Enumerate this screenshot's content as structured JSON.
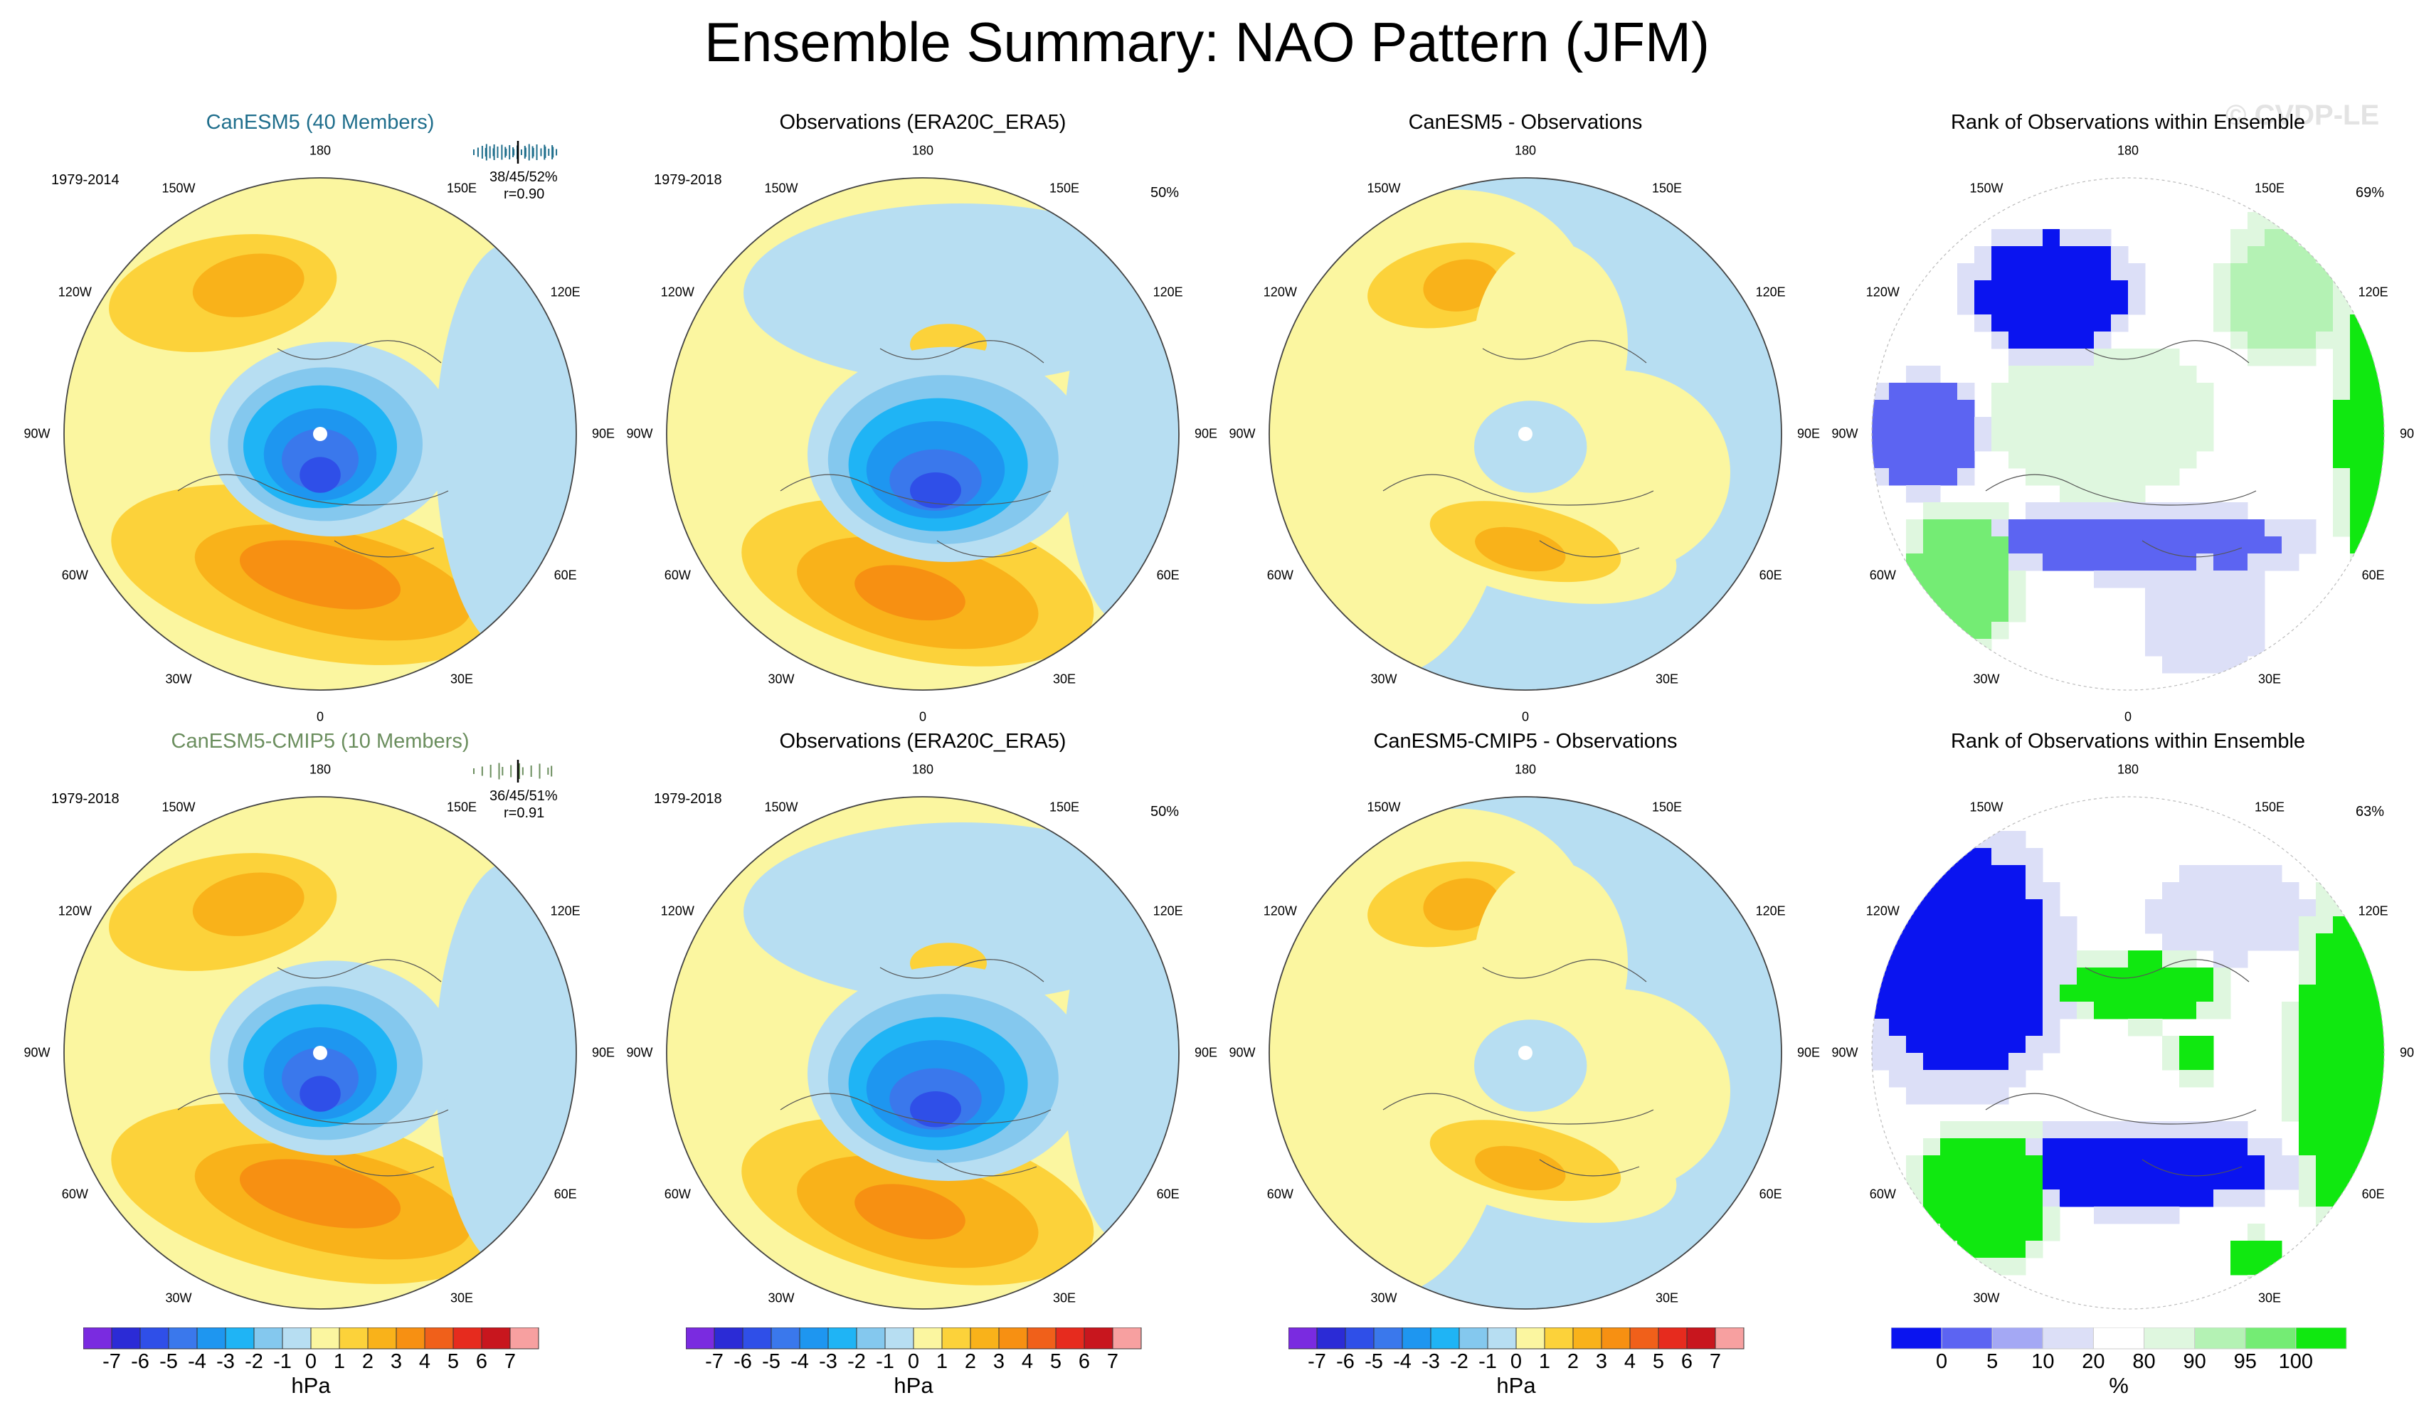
{
  "title": "Ensemble Summary: NAO Pattern (JFM)",
  "watermark": "© CVDP-LE",
  "longitude_labels": [
    "180",
    "150E",
    "120E",
    "90E",
    "60E",
    "30E",
    "0",
    "30W",
    "60W",
    "90W",
    "120W",
    "150W"
  ],
  "rows": [
    {
      "panels": [
        {
          "title": "CanESM5 (40 Members)",
          "title_color": "#1f6e8c",
          "period": "1979-2014",
          "stats": "38/45/52%",
          "corr": "r=0.90",
          "kind": "model"
        },
        {
          "title": "Observations (ERA20C_ERA5)",
          "title_color": "#000000",
          "period": "1979-2018",
          "pct": "50%",
          "kind": "obs"
        },
        {
          "title": "CanESM5 - Observations",
          "title_color": "#000000",
          "kind": "diff"
        },
        {
          "title": "Rank of Observations within Ensemble",
          "title_color": "#000000",
          "pct": "69%",
          "kind": "rank"
        }
      ]
    },
    {
      "panels": [
        {
          "title": "CanESM5-CMIP5 (10 Members)",
          "title_color": "#6b8e5e",
          "period": "1979-2018",
          "stats": "36/45/51%",
          "corr": "r=0.91",
          "kind": "model"
        },
        {
          "title": "Observations (ERA20C_ERA5)",
          "title_color": "#000000",
          "period": "1979-2018",
          "pct": "50%",
          "kind": "obs"
        },
        {
          "title": "CanESM5-CMIP5 - Observations",
          "title_color": "#000000",
          "kind": "diff"
        },
        {
          "title": "Rank of Observations within Ensemble",
          "title_color": "#000000",
          "pct": "63%",
          "kind": "rank"
        }
      ]
    }
  ],
  "chart_data": {
    "type": "heatmap",
    "projection": "north polar stereographic",
    "field": "NAO pattern sea level pressure regression",
    "colorbar_hpa": {
      "labels": [
        "-7",
        "-6",
        "-5",
        "-4",
        "-3",
        "-2",
        "-1",
        "0",
        "1",
        "2",
        "3",
        "4",
        "5",
        "6",
        "7"
      ],
      "unit": "hPa",
      "colors": [
        "#7a2be0",
        "#2b2bd6",
        "#2f4fe8",
        "#3a78ec",
        "#1e96f0",
        "#1fb4f5",
        "#84c8ee",
        "#b7def2",
        "#fbf6a0",
        "#fcd23a",
        "#f9b21a",
        "#f79012",
        "#f0601a",
        "#e62b1e",
        "#c8161e",
        "#f7a0a0"
      ]
    },
    "colorbar_rank": {
      "labels": [
        "0",
        "5",
        "10",
        "20",
        "80",
        "90",
        "95",
        "100"
      ],
      "unit": "%",
      "colors": [
        "#0a14f0",
        "#5c64f2",
        "#a4a8f4",
        "#dcdff7",
        "#ffffff",
        "#dff7df",
        "#b4f2b4",
        "#74ec74",
        "#10e810"
      ]
    },
    "rank_percentages": [
      "69%",
      "63%"
    ]
  }
}
